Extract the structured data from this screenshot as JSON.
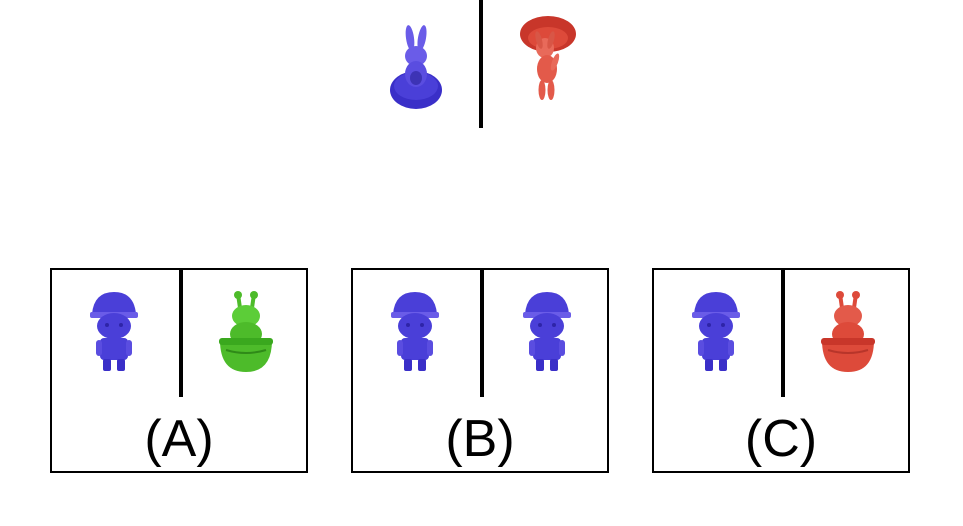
{
  "colors": {
    "blue": "#4a3fd8",
    "blue_dark": "#2e24a8",
    "red": "#dd4a3a",
    "red_dark": "#b8352a",
    "green": "#4dbb2a",
    "green_dark": "#2f8a18",
    "line": "#000000"
  },
  "top": {
    "left_figure": {
      "icon": "blue-rabbit-on-disc-icon",
      "color": "blue"
    },
    "right_figure": {
      "icon": "red-rabbit-with-hat-icon",
      "color": "red"
    }
  },
  "options": [
    {
      "label": "(A)",
      "left_figure": {
        "icon": "blue-boy-with-cap-icon",
        "color": "blue"
      },
      "right_figure": {
        "icon": "green-creature-in-bowl-icon",
        "color": "green"
      }
    },
    {
      "label": "(B)",
      "left_figure": {
        "icon": "blue-boy-with-cap-icon",
        "color": "blue"
      },
      "right_figure": {
        "icon": "blue-boy-with-cap-icon",
        "color": "blue"
      }
    },
    {
      "label": "(C)",
      "left_figure": {
        "icon": "blue-boy-with-cap-icon",
        "color": "blue"
      },
      "right_figure": {
        "icon": "red-creature-in-bowl-icon",
        "color": "red"
      }
    }
  ]
}
